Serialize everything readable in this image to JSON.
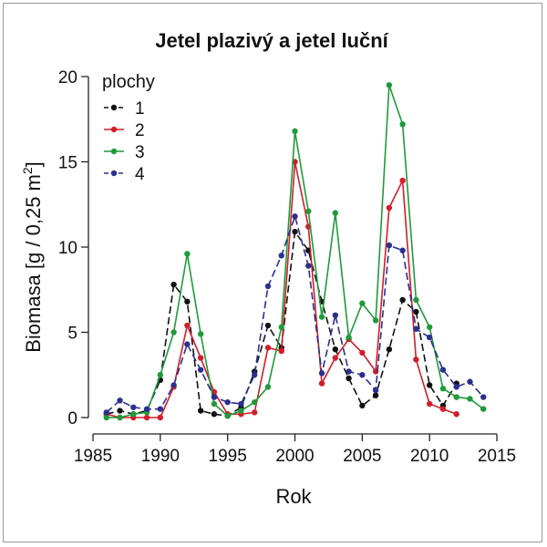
{
  "chart_data": {
    "type": "line",
    "title": "Jetel plazivý a jetel luční",
    "xlabel": "Rok",
    "ylabel_main": "Biomasa [g / 0,25 m",
    "ylabel_sup": "2",
    "ylabel_end": "]",
    "xlim": [
      1985,
      2015
    ],
    "ylim": [
      0,
      20
    ],
    "xticks": [
      1985,
      1990,
      1995,
      2000,
      2005,
      2010,
      2015
    ],
    "yticks": [
      0,
      5,
      10,
      15,
      20
    ],
    "legend_title": "plochy",
    "legend_position": "top-left",
    "x": [
      1986,
      1987,
      1988,
      1989,
      1990,
      1991,
      1992,
      1993,
      1994,
      1995,
      1996,
      1997,
      1998,
      1999,
      2000,
      2001,
      2002,
      2003,
      2004,
      2005,
      2006,
      2007,
      2008,
      2009,
      2010,
      2011,
      2012,
      2013,
      2014
    ],
    "series": [
      {
        "name": "1",
        "color": "#111111",
        "dash": "8,4",
        "values": [
          0.2,
          0.4,
          0.2,
          0.4,
          2.2,
          7.8,
          6.8,
          0.4,
          0.2,
          0.1,
          0.6,
          2.7,
          5.4,
          4.1,
          10.9,
          9.8,
          6.8,
          4.0,
          2.3,
          0.7,
          1.3,
          4.0,
          6.9,
          6.2,
          1.9,
          0.7,
          2.0,
          null,
          null
        ]
      },
      {
        "name": "2",
        "color": "#d01e2a",
        "dash": "",
        "values": [
          0.2,
          0.0,
          0.0,
          0.0,
          0.0,
          1.8,
          5.4,
          3.5,
          1.5,
          0.2,
          0.2,
          0.3,
          4.1,
          3.9,
          15.0,
          11.2,
          2.0,
          3.5,
          4.6,
          3.8,
          2.7,
          12.3,
          13.9,
          3.4,
          0.8,
          0.5,
          0.2,
          null,
          null
        ]
      },
      {
        "name": "3",
        "color": "#1f9a3a",
        "dash": "",
        "values": [
          0.0,
          0.0,
          0.2,
          0.3,
          2.5,
          5.0,
          9.6,
          4.9,
          0.8,
          0.1,
          0.4,
          0.9,
          1.8,
          5.3,
          16.8,
          12.1,
          5.9,
          12.0,
          4.7,
          6.7,
          5.7,
          19.5,
          17.2,
          6.9,
          5.3,
          1.7,
          1.2,
          1.1,
          0.5
        ]
      },
      {
        "name": "4",
        "color": "#2b2f8e",
        "dash": "8,4",
        "values": [
          0.3,
          1.0,
          0.6,
          0.5,
          0.5,
          1.9,
          4.3,
          2.8,
          1.2,
          0.9,
          0.8,
          2.5,
          7.7,
          9.5,
          11.8,
          8.9,
          2.6,
          6.0,
          2.7,
          2.5,
          1.6,
          10.1,
          9.8,
          5.2,
          4.7,
          2.8,
          1.8,
          2.1,
          1.2
        ]
      }
    ]
  }
}
